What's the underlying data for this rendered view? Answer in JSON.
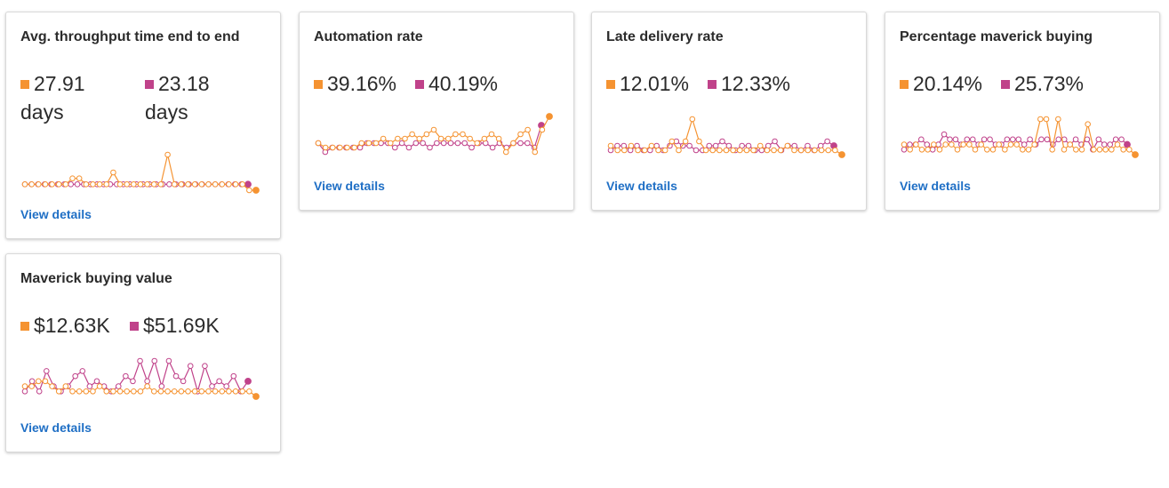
{
  "colors": {
    "series_a": "#f59331",
    "series_b": "#c0428a",
    "link": "#1f6fc5"
  },
  "cards": [
    {
      "title": "Avg. throughput time end to end",
      "value_a": "27.91 days",
      "value_b": "23.18 days",
      "link": "View details",
      "spark_a": [
        0,
        0,
        0,
        0,
        0,
        0,
        0,
        1,
        1,
        0,
        0,
        0,
        0,
        2,
        0,
        0,
        0,
        0,
        0,
        0,
        0,
        5,
        0,
        0,
        0,
        0,
        0,
        0,
        0,
        0,
        0,
        0,
        0,
        -1,
        -1
      ],
      "spark_b": [
        0,
        0,
        0,
        0,
        0,
        0,
        0,
        0,
        0,
        0,
        0,
        0,
        0,
        0,
        0,
        0,
        0,
        0,
        0,
        0,
        0,
        0,
        0,
        0,
        0,
        0,
        0,
        0,
        0,
        0,
        0,
        0,
        0,
        0,
        0
      ]
    },
    {
      "title": "Automation rate",
      "value_a": "39.16%",
      "value_b": "40.19%",
      "link": "View details",
      "spark_a": [
        2,
        1,
        1,
        1,
        1,
        1,
        2,
        2,
        2,
        3,
        2,
        3,
        3,
        4,
        3,
        4,
        5,
        3,
        3,
        4,
        4,
        3,
        2,
        3,
        4,
        3,
        0,
        2,
        4,
        5,
        0,
        5,
        8
      ],
      "spark_b": [
        2,
        0,
        1,
        1,
        1,
        1,
        1,
        2,
        2,
        2,
        2,
        1,
        2,
        1,
        2,
        2,
        1,
        2,
        2,
        2,
        2,
        2,
        1,
        2,
        2,
        1,
        2,
        1,
        2,
        2,
        2,
        1,
        6
      ]
    },
    {
      "title": "Late delivery rate",
      "value_a": "12.01%",
      "value_b": "12.33%",
      "link": "View details",
      "spark_a": [
        1,
        0,
        0,
        1,
        0,
        0,
        1,
        0,
        0,
        2,
        0,
        2,
        7,
        2,
        0,
        0,
        0,
        0,
        0,
        0,
        0,
        0,
        1,
        0,
        0,
        0,
        1,
        0,
        0,
        0,
        0,
        0,
        0,
        0,
        -1
      ],
      "spark_b": [
        0,
        1,
        1,
        0,
        1,
        0,
        0,
        1,
        0,
        1,
        2,
        1,
        1,
        0,
        0,
        1,
        1,
        2,
        1,
        0,
        1,
        1,
        0,
        0,
        1,
        2,
        0,
        1,
        1,
        0,
        1,
        0,
        1,
        2,
        1
      ]
    },
    {
      "title": "Percentage maverick buying",
      "value_a": "20.14%",
      "value_b": "25.73%",
      "link": "View details",
      "spark_a": [
        1,
        0,
        1,
        0,
        0,
        1,
        0,
        1,
        1,
        0,
        1,
        1,
        0,
        1,
        0,
        0,
        1,
        0,
        1,
        1,
        0,
        0,
        1,
        6,
        6,
        0,
        6,
        0,
        1,
        0,
        0,
        5,
        0,
        0,
        0,
        0,
        1,
        0,
        0,
        -1
      ],
      "spark_b": [
        0,
        1,
        1,
        2,
        1,
        0,
        1,
        3,
        2,
        2,
        1,
        2,
        2,
        1,
        2,
        2,
        1,
        1,
        2,
        2,
        2,
        1,
        2,
        1,
        2,
        2,
        1,
        2,
        2,
        1,
        2,
        1,
        2,
        0,
        2,
        1,
        1,
        2,
        2,
        1
      ]
    },
    {
      "title": "Maverick buying value",
      "value_a": "$12.63K",
      "value_b": "$51.69K",
      "link": "View details",
      "spark_a": [
        2,
        2,
        3,
        3,
        2,
        1,
        2,
        1,
        1,
        1,
        1,
        2,
        1,
        1,
        1,
        1,
        1,
        1,
        2,
        1,
        1,
        1,
        1,
        1,
        1,
        1,
        1,
        1,
        1,
        1,
        1,
        1,
        1,
        1,
        0
      ],
      "spark_b": [
        1,
        3,
        1,
        5,
        2,
        1,
        2,
        4,
        5,
        2,
        3,
        2,
        1,
        2,
        4,
        3,
        7,
        3,
        7,
        2,
        7,
        4,
        3,
        6,
        1,
        6,
        2,
        3,
        2,
        4,
        1,
        3
      ]
    }
  ]
}
